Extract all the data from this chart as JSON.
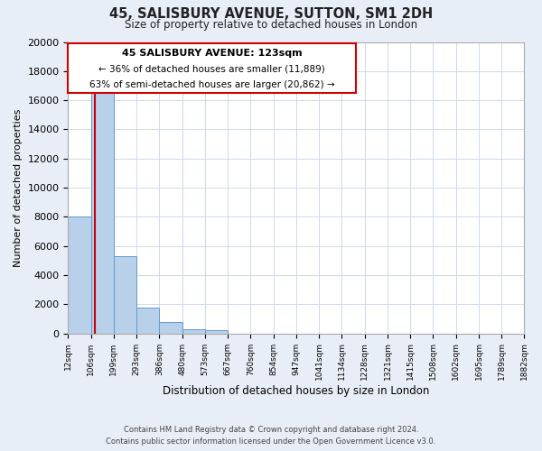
{
  "title": "45, SALISBURY AVENUE, SUTTON, SM1 2DH",
  "subtitle": "Size of property relative to detached houses in London",
  "xlabel": "Distribution of detached houses by size in London",
  "ylabel": "Number of detached properties",
  "bar_values": [
    8050,
    16600,
    5300,
    1800,
    750,
    300,
    200,
    0,
    0,
    0,
    0,
    0,
    0,
    0,
    0,
    0,
    0,
    0,
    0
  ],
  "bin_labels": [
    "12sqm",
    "106sqm",
    "199sqm",
    "293sqm",
    "386sqm",
    "480sqm",
    "573sqm",
    "667sqm",
    "760sqm",
    "854sqm",
    "947sqm",
    "1041sqm",
    "1134sqm",
    "1228sqm",
    "1321sqm",
    "1415sqm",
    "1508sqm",
    "1602sqm",
    "1695sqm",
    "1789sqm",
    "1882sqm"
  ],
  "n_bins": 19,
  "bar_color": "#b8d0ea",
  "bar_edge_color": "#6699cc",
  "property_line_color": "#cc0000",
  "property_line_x": 123,
  "ylim": [
    0,
    20000
  ],
  "yticks": [
    0,
    2000,
    4000,
    6000,
    8000,
    10000,
    12000,
    14000,
    16000,
    18000,
    20000
  ],
  "annotation_title": "45 SALISBURY AVENUE: 123sqm",
  "annotation_line1": "← 36% of detached houses are smaller (11,889)",
  "annotation_line2": "63% of semi-detached houses are larger (20,862) →",
  "annotation_box_facecolor": "#ffffff",
  "annotation_box_edgecolor": "#cc0000",
  "footer_line1": "Contains HM Land Registry data © Crown copyright and database right 2024.",
  "footer_line2": "Contains public sector information licensed under the Open Government Licence v3.0.",
  "background_color": "#e8eef8",
  "plot_bg_color": "#ffffff",
  "grid_color": "#c8d4e8"
}
